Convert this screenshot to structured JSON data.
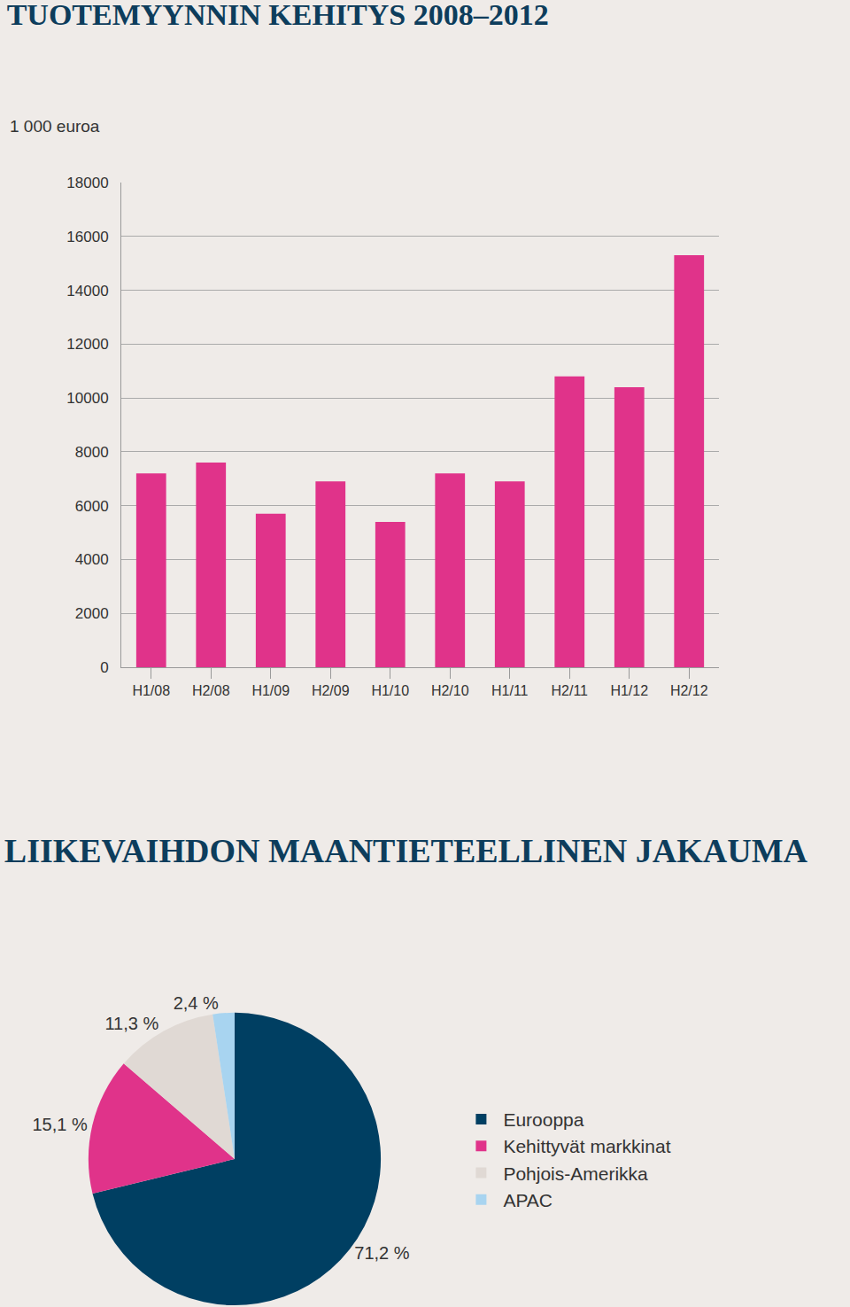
{
  "chart_data": [
    {
      "type": "bar",
      "title": "TUOTEMYYNNIN KEHITYS 2008–2012",
      "ylabel": "1 000 euroa",
      "categories": [
        "H1/08",
        "H2/08",
        "H1/09",
        "H2/09",
        "H1/10",
        "H2/10",
        "H1/11",
        "H2/11",
        "H1/12",
        "H2/12"
      ],
      "values": [
        7200,
        7600,
        5700,
        6900,
        5400,
        7200,
        6900,
        10800,
        10400,
        15300
      ],
      "color": "#e0338a",
      "ylim": [
        0,
        18000
      ],
      "yticks": [
        0,
        2000,
        4000,
        6000,
        8000,
        10000,
        12000,
        14000,
        16000,
        18000
      ],
      "grid": true
    },
    {
      "type": "pie",
      "title": "LIIKEVAIHDON MAANTIETEELLINEN JAKAUMA",
      "categories": [
        "Eurooppa",
        "Kehittyvät markkinat",
        "Pohjois-Amerikka",
        "APAC"
      ],
      "values": [
        71.2,
        15.1,
        11.3,
        2.4
      ],
      "value_labels": [
        "71,2 %",
        "15,1 %",
        "11,3 %",
        "2,4 %"
      ],
      "colors": [
        "#003f62",
        "#e0338a",
        "#e0d9d4",
        "#a8d4f0"
      ],
      "data_labels": true,
      "legend": "right"
    }
  ]
}
